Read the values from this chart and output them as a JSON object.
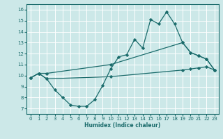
{
  "bg_color": "#cce8e8",
  "grid_color": "#aad4d4",
  "line_color": "#1a6b6b",
  "xlabel": "Humidex (Indice chaleur)",
  "xlim": [
    -0.5,
    23.5
  ],
  "ylim": [
    6.5,
    16.5
  ],
  "yticks": [
    7,
    8,
    9,
    10,
    11,
    12,
    13,
    14,
    15,
    16
  ],
  "xticks": [
    0,
    1,
    2,
    3,
    4,
    5,
    6,
    7,
    8,
    9,
    10,
    11,
    12,
    13,
    14,
    15,
    16,
    17,
    18,
    19,
    20,
    21,
    22,
    23
  ],
  "curve_jagged": {
    "x": [
      0,
      1,
      2,
      3,
      4,
      5,
      6,
      7,
      8,
      9,
      10,
      11,
      12,
      13,
      14,
      15,
      16,
      17,
      18,
      19,
      20,
      21,
      22,
      23
    ],
    "y": [
      9.8,
      10.2,
      9.7,
      8.7,
      8.0,
      7.3,
      7.2,
      7.2,
      7.8,
      9.1,
      10.6,
      11.7,
      11.9,
      13.3,
      12.5,
      15.1,
      14.7,
      15.8,
      14.7,
      13.0,
      12.1,
      11.8,
      11.5,
      10.5
    ]
  },
  "curve_upper": {
    "x": [
      0,
      1,
      2,
      10,
      19,
      20,
      21,
      22,
      23
    ],
    "y": [
      9.8,
      10.2,
      10.2,
      11.0,
      13.0,
      12.1,
      11.8,
      11.5,
      10.5
    ]
  },
  "curve_lower": {
    "x": [
      0,
      1,
      2,
      10,
      19,
      20,
      21,
      22,
      23
    ],
    "y": [
      9.8,
      10.2,
      9.7,
      9.9,
      10.5,
      10.6,
      10.7,
      10.8,
      10.5
    ]
  }
}
